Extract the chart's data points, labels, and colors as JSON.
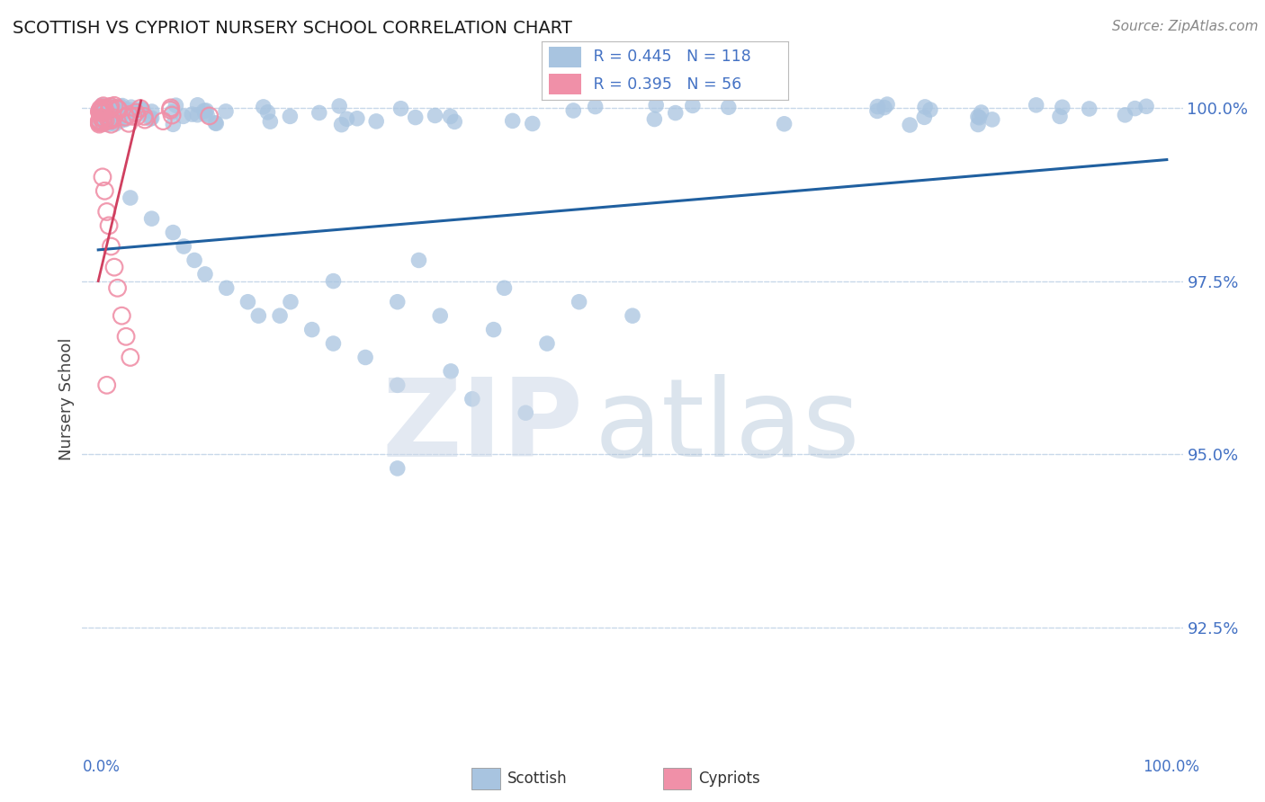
{
  "title": "SCOTTISH VS CYPRIOT NURSERY SCHOOL CORRELATION CHART",
  "source": "Source: ZipAtlas.com",
  "ylabel": "Nursery School",
  "ytick_values": [
    1.0,
    0.975,
    0.95,
    0.925
  ],
  "ymin": 0.908,
  "ymax": 1.008,
  "xmin": -0.015,
  "xmax": 1.015,
  "legend_blue_r": "R = 0.445",
  "legend_blue_n": "N = 118",
  "legend_pink_r": "R = 0.395",
  "legend_pink_n": "N = 56",
  "scatter_blue_fill": "#a8c4e0",
  "scatter_blue_edge": "#a8c4e0",
  "scatter_pink_fill": "none",
  "scatter_pink_edge": "#f090a8",
  "trendline_blue_color": "#2060a0",
  "trendline_pink_color": "#d04060",
  "axis_tick_color": "#4472c4",
  "grid_color": "#c8d8ea",
  "title_color": "#1a1a1a",
  "source_color": "#888888",
  "ylabel_color": "#444444",
  "background_color": "#ffffff",
  "watermark_zip_color": "#ccd8e8",
  "watermark_atlas_color": "#b0c4d8",
  "legend_border_color": "#bbbbbb",
  "bottom_legend_scottish_label": "Scottish",
  "bottom_legend_cypriot_label": "Cypriots"
}
